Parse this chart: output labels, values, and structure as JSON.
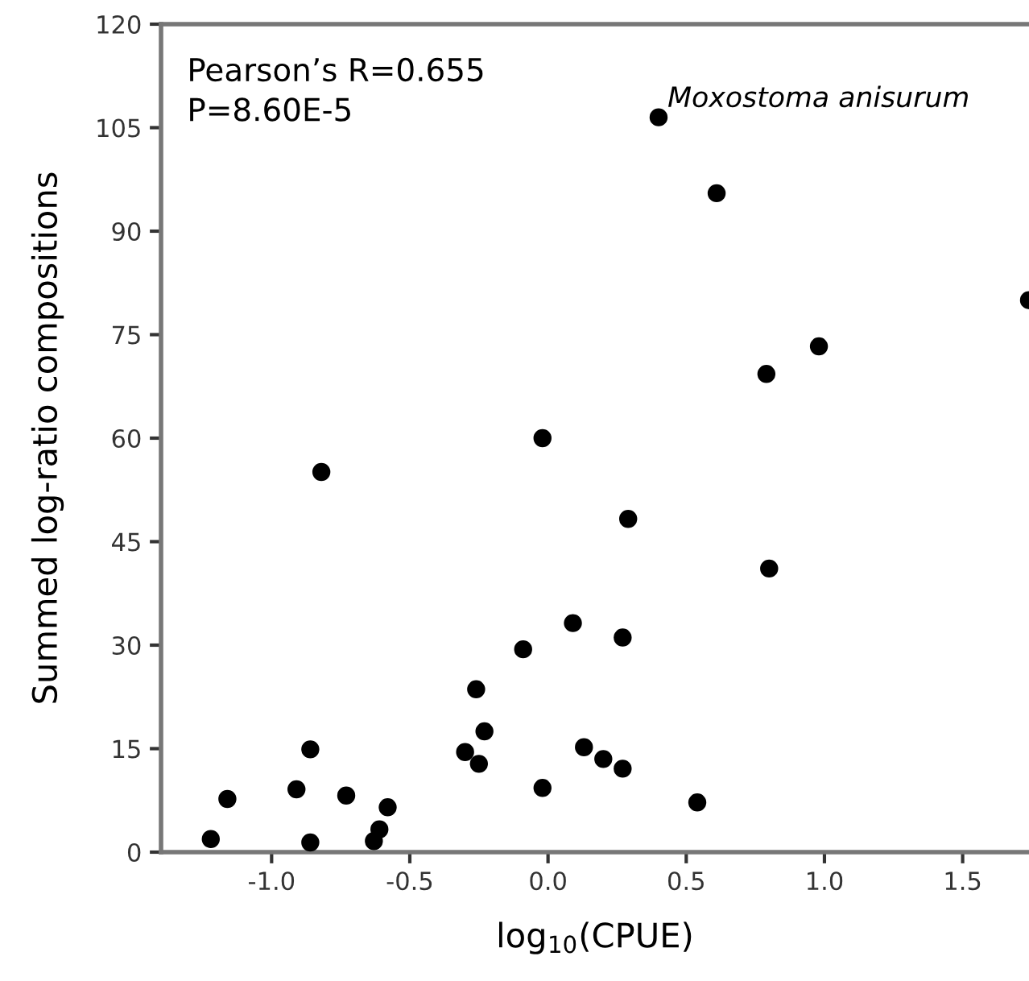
{
  "chart_data": {
    "type": "scatter",
    "xlabel": "log$_{10}$(CPUE)",
    "ylabel": "Summed log-ratio compositions",
    "x": [
      0.4,
      0.61,
      1.74,
      0.98,
      0.79,
      -0.02,
      -0.82,
      0.29,
      0.8,
      0.09,
      0.27,
      -0.09,
      -0.26,
      -0.23,
      -0.86,
      -0.3,
      0.13,
      0.2,
      -0.25,
      0.27,
      -0.91,
      -0.02,
      -1.16,
      -0.73,
      0.54,
      -0.58,
      -0.61,
      -1.22,
      -0.86,
      -0.63
    ],
    "values": [
      106.5,
      95.5,
      80,
      73.3,
      69.3,
      60.0,
      55.1,
      48.3,
      41.1,
      33.2,
      31.1,
      29.4,
      23.6,
      17.5,
      14.9,
      14.5,
      15.2,
      13.5,
      12.8,
      12.1,
      9.1,
      9.3,
      7.7,
      8.2,
      7.2,
      6.5,
      3.3,
      1.9,
      1.4,
      1.6
    ],
    "color": "#000000",
    "marker": "circle",
    "xlim": [
      -1.4,
      1.74
    ],
    "xticks": [
      {
        "value": -1.0,
        "label": "-1.0"
      },
      {
        "value": -0.5,
        "label": "-0.5"
      },
      {
        "value": 0.0,
        "label": "0.0"
      },
      {
        "value": 0.5,
        "label": "0.5"
      },
      {
        "value": 1.0,
        "label": "1.0"
      },
      {
        "value": 1.5,
        "label": "1.5"
      }
    ],
    "ylim": [
      0,
      120
    ],
    "yticks": [
      0,
      15,
      30,
      45,
      60,
      75,
      90,
      105,
      120
    ],
    "grid": false,
    "annotations": [
      "Pearson’s R=0.655\nP=8.60E-5",
      {
        "text": "Moxostoma anisurum",
        "x": 0.4,
        "y": 106.5
      }
    ]
  }
}
